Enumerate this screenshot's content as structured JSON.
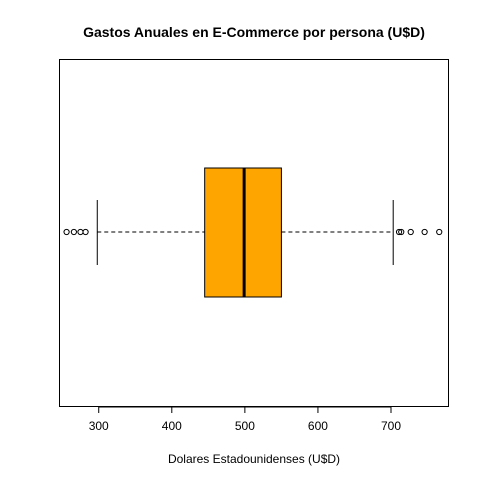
{
  "chart_data": {
    "type": "boxplot",
    "orientation": "horizontal",
    "title": "Gastos Anuales en E-Commerce por persona (U$D)",
    "xlabel": "Dolares Estadounidenses (U$D)",
    "ylabel": "",
    "xlim": [
      247,
      778
    ],
    "xticks": [
      300,
      400,
      500,
      600,
      700
    ],
    "grid": false,
    "legend": "none",
    "box": {
      "whisker_low": 298,
      "q1": 445,
      "median": 499,
      "q3": 550,
      "whisker_high": 703,
      "outliers": [
        256,
        266,
        275,
        282,
        711,
        714,
        727,
        746,
        766
      ],
      "fill_color": "#FFA500"
    }
  }
}
